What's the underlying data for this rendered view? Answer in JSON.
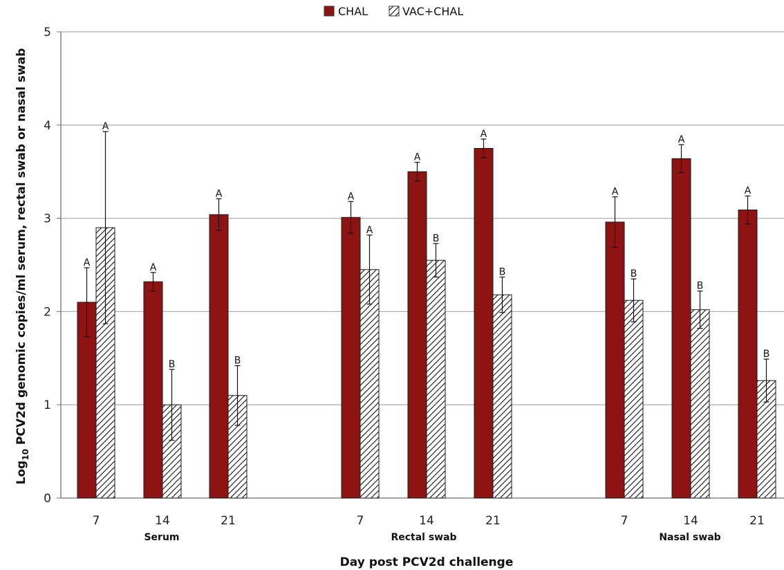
{
  "colors": {
    "chal": "#8e1414",
    "hatch_line": "#222222",
    "grid": "#b0b0b0",
    "axis": "#707070"
  },
  "legend": {
    "chal_label": "CHAL",
    "vac_label": "VAC+CHAL"
  },
  "chart_data": {
    "type": "bar",
    "title": "",
    "xlabel": "Day post PCV2d challenge",
    "ylabel_prefix": "Log",
    "ylabel_subscript": "10",
    "ylabel_rest": " PCV2d genomic copies/ml serum, rectal swab or nasal swab",
    "ylim": [
      0,
      5
    ],
    "yticks": [
      "0",
      "1",
      "2",
      "3",
      "4",
      "5"
    ],
    "grid": true,
    "legend_position": "top-center",
    "groups": [
      {
        "name": "Serum",
        "days": [
          "7",
          "14",
          "21"
        ],
        "chal": {
          "values": [
            2.1,
            2.32,
            3.04
          ],
          "errors": [
            0.37,
            0.1,
            0.17
          ],
          "letters": [
            "A",
            "A",
            "A"
          ]
        },
        "vac": {
          "values": [
            2.9,
            1.0,
            1.1
          ],
          "errors": [
            1.03,
            0.38,
            0.32
          ],
          "letters": [
            "A",
            "B",
            "B"
          ]
        }
      },
      {
        "name": "Rectal swab",
        "days": [
          "7",
          "14",
          "21"
        ],
        "chal": {
          "values": [
            3.01,
            3.5,
            3.75
          ],
          "errors": [
            0.17,
            0.1,
            0.1
          ],
          "letters": [
            "A",
            "A",
            "A"
          ]
        },
        "vac": {
          "values": [
            2.45,
            2.55,
            2.18
          ],
          "errors": [
            0.37,
            0.18,
            0.19
          ],
          "letters": [
            "A",
            "B",
            "B"
          ]
        }
      },
      {
        "name": "Nasal swab",
        "days": [
          "7",
          "14",
          "21"
        ],
        "chal": {
          "values": [
            2.96,
            3.64,
            3.09
          ],
          "errors": [
            0.27,
            0.15,
            0.15
          ],
          "letters": [
            "A",
            "A",
            "A"
          ]
        },
        "vac": {
          "values": [
            2.12,
            2.02,
            1.26
          ],
          "errors": [
            0.23,
            0.2,
            0.23
          ],
          "letters": [
            "B",
            "B",
            "B"
          ]
        }
      }
    ]
  }
}
